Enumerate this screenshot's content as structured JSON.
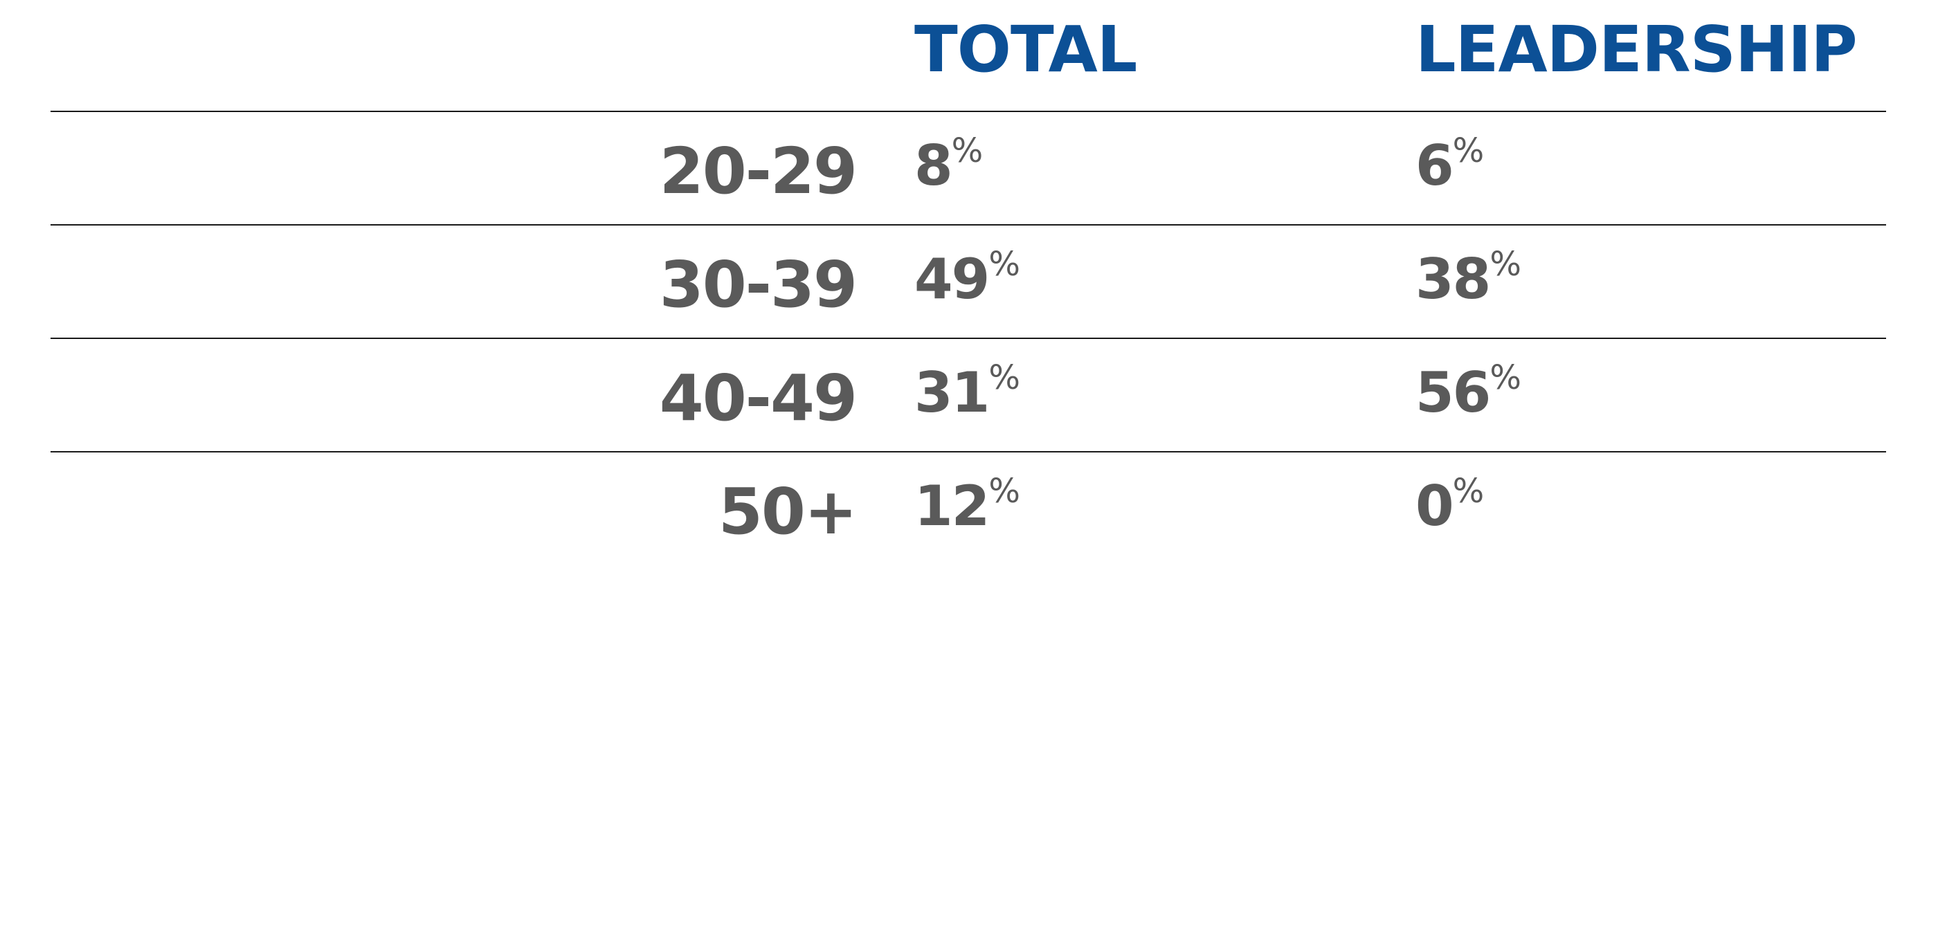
{
  "colors": {
    "header": "#0c5096",
    "text": "#5a5a5a",
    "rule": "#1a1a1a"
  },
  "chart_data": {
    "type": "table",
    "columns": [
      "TOTAL",
      "LEADERSHIP"
    ],
    "unit_symbol": "%",
    "rows": [
      {
        "label": "20-29",
        "TOTAL": "8",
        "LEADERSHIP": "6"
      },
      {
        "label": "30-39",
        "TOTAL": "49",
        "LEADERSHIP": "38"
      },
      {
        "label": "40-49",
        "TOTAL": "31",
        "LEADERSHIP": "56"
      },
      {
        "label": "50+",
        "TOTAL": "12",
        "LEADERSHIP": "0"
      }
    ]
  }
}
